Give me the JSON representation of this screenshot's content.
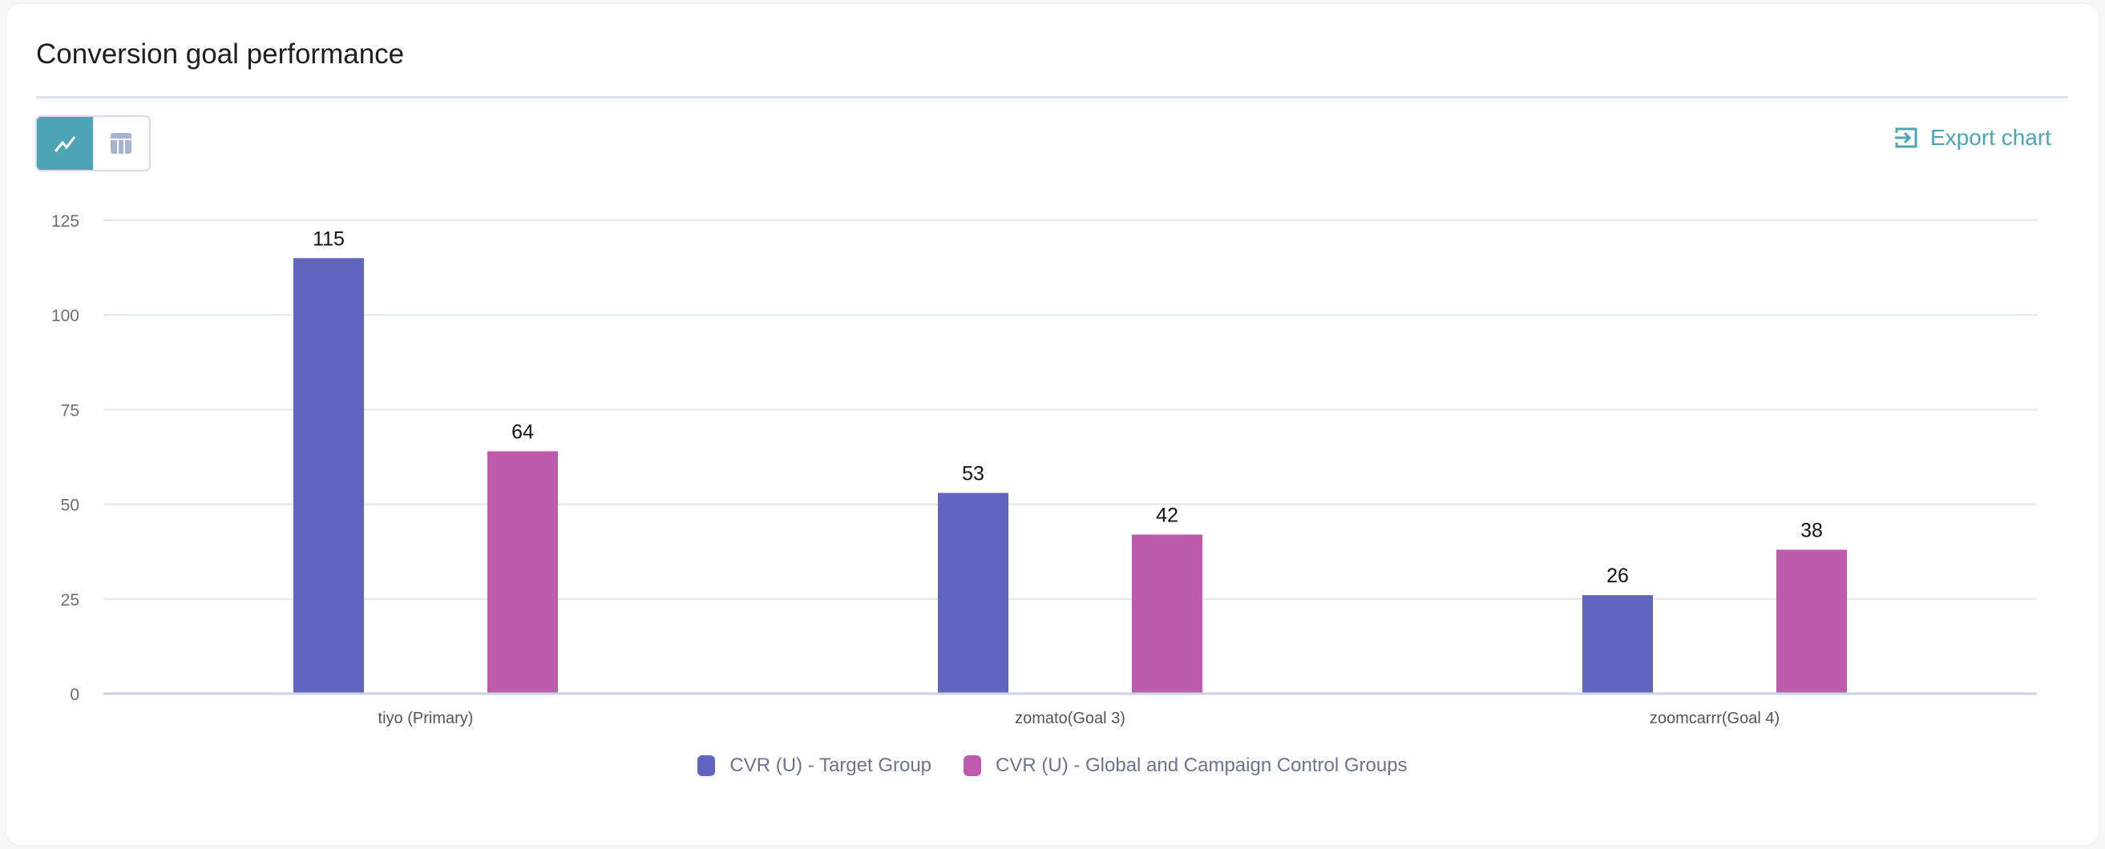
{
  "header": {
    "title": "Conversion goal performance",
    "export_label": "Export chart"
  },
  "toggle": {
    "chart_icon": "line-chart-icon",
    "table_icon": "table-icon"
  },
  "colors": {
    "accent": "#4ca5b5",
    "series1": "#6065bf",
    "series2": "#be5bad"
  },
  "chart_data": {
    "type": "bar",
    "title": "Conversion goal performance",
    "categories": [
      "tiyo (Primary)",
      "zomato(Goal 3)",
      "zoomcarrr(Goal 4)"
    ],
    "series": [
      {
        "name": "CVR (U) - Target Group",
        "values": [
          115,
          53,
          26
        ]
      },
      {
        "name": "CVR (U) - Global and Campaign Control Groups",
        "values": [
          64,
          42,
          38
        ]
      }
    ],
    "yticks": [
      0,
      25,
      50,
      75,
      100,
      125
    ],
    "ylim": [
      0,
      125
    ],
    "xlabel": "",
    "ylabel": "",
    "grid": true,
    "legend": "bottom-center"
  }
}
